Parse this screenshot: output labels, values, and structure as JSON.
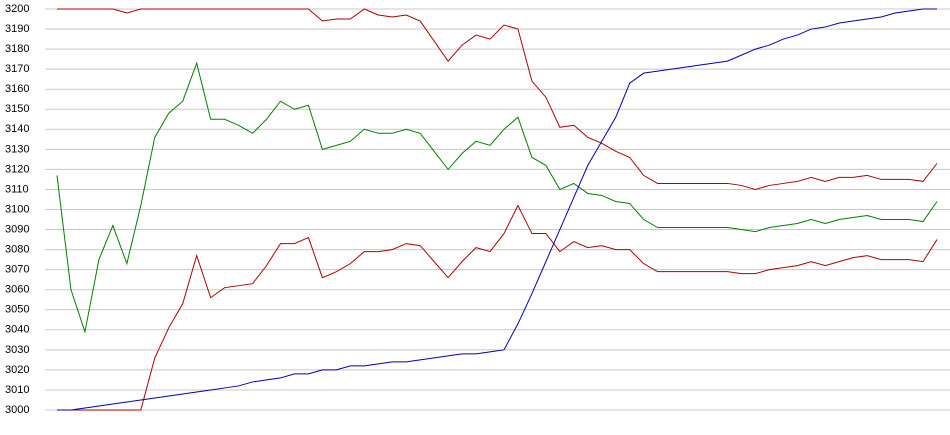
{
  "chart_data": {
    "type": "line",
    "ylim": [
      3000,
      3200
    ],
    "yticks": [
      3000,
      3010,
      3020,
      3030,
      3040,
      3050,
      3060,
      3070,
      3080,
      3090,
      3100,
      3110,
      3120,
      3130,
      3140,
      3150,
      3160,
      3170,
      3180,
      3190,
      3200
    ],
    "grid": true,
    "series": [
      {
        "color": "#b00000",
        "values": [
          3200,
          3200,
          3200,
          3200,
          3200,
          3198,
          3200,
          3200,
          3200,
          3200,
          3200,
          3200,
          3200,
          3200,
          3200,
          3200,
          3200,
          3200,
          3200,
          3194,
          3195,
          3195,
          3200,
          3197,
          3196,
          3197,
          3194,
          3184,
          3174,
          3182,
          3187,
          3185,
          3192,
          3190,
          3164,
          3156,
          3141,
          3142,
          3136,
          3133,
          3129,
          3126,
          3117,
          3113,
          3113,
          3113,
          3113,
          3113,
          3113,
          3112,
          3110,
          3112,
          3113,
          3114,
          3116,
          3114,
          3116,
          3116,
          3117,
          3115,
          3115,
          3115,
          3114,
          3123
        ]
      },
      {
        "color": "#007f00",
        "values": [
          3117,
          3060,
          3039,
          3075,
          3092,
          3073,
          3102,
          3136,
          3148,
          3154,
          3173,
          3145,
          3145,
          3142,
          3138,
          3145,
          3154,
          3150,
          3152,
          3130,
          3132,
          3134,
          3140,
          3138,
          3138,
          3140,
          3138,
          3129,
          3120,
          3128,
          3134,
          3132,
          3140,
          3146,
          3126,
          3122,
          3110,
          3113,
          3108,
          3107,
          3104,
          3103,
          3095,
          3091,
          3091,
          3091,
          3091,
          3091,
          3091,
          3090,
          3089,
          3091,
          3092,
          3093,
          3095,
          3093,
          3095,
          3096,
          3097,
          3095,
          3095,
          3095,
          3094,
          3104
        ]
      },
      {
        "color": "#b00000",
        "values": [
          3000,
          3000,
          3000,
          3000,
          3000,
          3000,
          3000,
          3026,
          3041,
          3053,
          3077,
          3056,
          3061,
          3062,
          3063,
          3072,
          3083,
          3083,
          3086,
          3066,
          3069,
          3073,
          3079,
          3079,
          3080,
          3083,
          3082,
          3074,
          3066,
          3074,
          3081,
          3079,
          3088,
          3102,
          3088,
          3088,
          3079,
          3084,
          3081,
          3082,
          3080,
          3080,
          3073,
          3069,
          3069,
          3069,
          3069,
          3069,
          3069,
          3068,
          3068,
          3070,
          3071,
          3072,
          3074,
          3072,
          3074,
          3076,
          3077,
          3075,
          3075,
          3075,
          3074,
          3085
        ]
      },
      {
        "color": "#0000b0",
        "values": [
          3000,
          3000,
          3001,
          3002,
          3003,
          3004,
          3005,
          3006,
          3007,
          3008,
          3009,
          3010,
          3011,
          3012,
          3014,
          3015,
          3016,
          3018,
          3018,
          3020,
          3020,
          3022,
          3022,
          3023,
          3024,
          3024,
          3025,
          3026,
          3027,
          3028,
          3028,
          3029,
          3030,
          3043,
          3058,
          3074,
          3090,
          3106,
          3122,
          3134,
          3146,
          3163,
          3168,
          3169,
          3170,
          3171,
          3172,
          3173,
          3174,
          3177,
          3180,
          3182,
          3185,
          3187,
          3190,
          3191,
          3193,
          3194,
          3195,
          3196,
          3198,
          3199,
          3200,
          3200
        ]
      }
    ]
  }
}
